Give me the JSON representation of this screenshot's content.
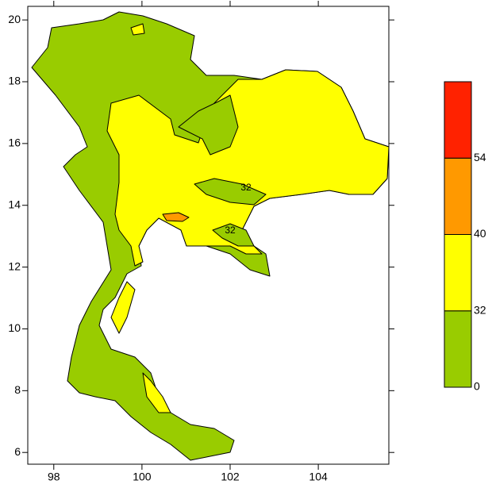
{
  "chart_data": {
    "type": "map",
    "xlim": [
      97.41,
      105.6
    ],
    "ylim": [
      5.62,
      20.44
    ],
    "xticks": [
      98,
      100,
      102,
      104
    ],
    "yticks": [
      6,
      8,
      10,
      12,
      14,
      16,
      18,
      20
    ],
    "contour_labels": [
      "32",
      "32"
    ],
    "colorbar": {
      "boundaries": [
        0,
        32,
        40,
        54
      ],
      "colors": [
        "#99cc00",
        "#ffff00",
        "#ff9900",
        "#ff2200"
      ]
    }
  }
}
